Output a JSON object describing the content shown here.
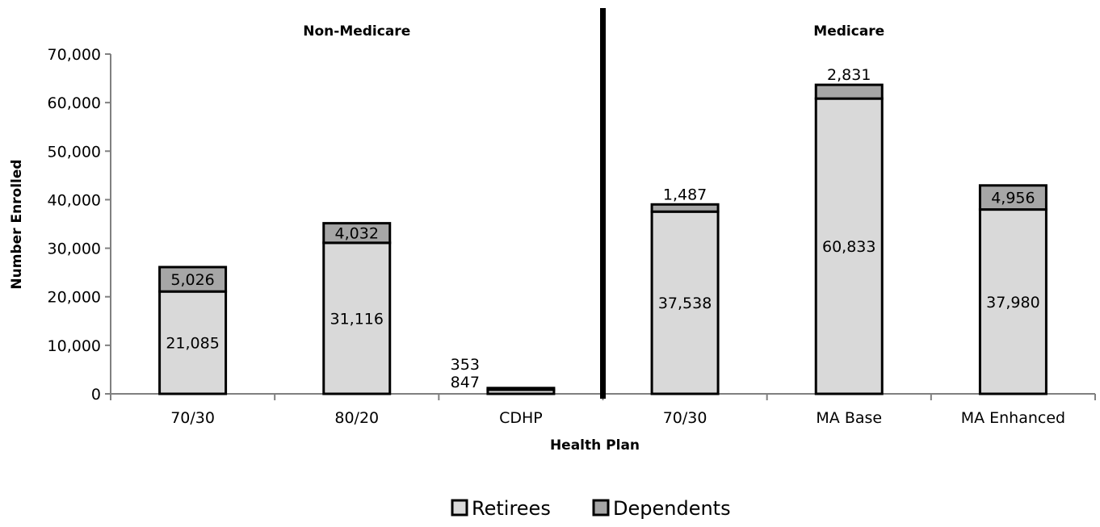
{
  "chart_data": {
    "type": "bar",
    "stacked": true,
    "xlabel": "Health Plan",
    "ylabel": "Number Enrolled",
    "ylim": [
      0,
      70000
    ],
    "yticks": [
      "0",
      "10,000",
      "20,000",
      "30,000",
      "40,000",
      "50,000",
      "60,000",
      "70,000"
    ],
    "ytick_values": [
      0,
      10000,
      20000,
      30000,
      40000,
      50000,
      60000,
      70000
    ],
    "groups": [
      {
        "label": "Non-Medicare",
        "categories": [
          0,
          1,
          2
        ]
      },
      {
        "label": "Medicare",
        "categories": [
          3,
          4,
          5
        ]
      }
    ],
    "categories": [
      "70/30",
      "80/20",
      "CDHP",
      "70/30",
      "MA Base",
      "MA Enhanced"
    ],
    "series": [
      {
        "name": "Retirees",
        "color": "#d9d9d9",
        "values": [
          21085,
          31116,
          847,
          37538,
          60833,
          37980
        ],
        "labels": [
          "21,085",
          "31,116",
          "847",
          "37,538",
          "60,833",
          "37,980"
        ]
      },
      {
        "name": "Dependents",
        "color": "#a6a6a6",
        "values": [
          5026,
          4032,
          353,
          1487,
          2831,
          4956
        ],
        "labels": [
          "5,026",
          "4,032",
          "353",
          "1,487",
          "2,831",
          "4,956"
        ]
      }
    ],
    "legend": {
      "position": "bottom"
    },
    "grid": false
  }
}
